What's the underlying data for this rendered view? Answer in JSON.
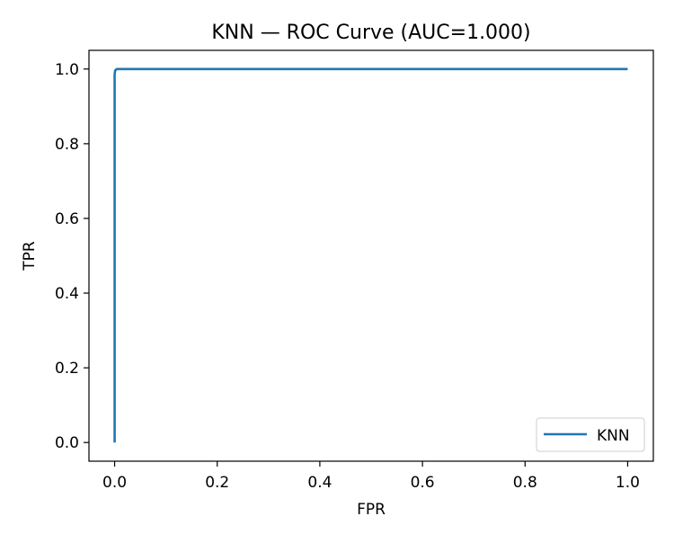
{
  "chart_data": {
    "type": "line",
    "title": "KNN — ROC Curve (AUC=1.000)",
    "xlabel": "FPR",
    "ylabel": "TPR",
    "xlim": [
      -0.05,
      1.05
    ],
    "ylim": [
      -0.05,
      1.05
    ],
    "x_ticks": [
      0.0,
      0.2,
      0.4,
      0.6,
      0.8,
      1.0
    ],
    "y_ticks": [
      0.0,
      0.2,
      0.4,
      0.6,
      0.8,
      1.0
    ],
    "x_tick_labels": [
      "0.0",
      "0.2",
      "0.4",
      "0.6",
      "0.8",
      "1.0"
    ],
    "y_tick_labels": [
      "0.0",
      "0.2",
      "0.4",
      "0.6",
      "0.8",
      "1.0"
    ],
    "grid": false,
    "legend_position": "lower-right",
    "series": [
      {
        "name": "KNN",
        "color": "#1f77b4",
        "x": [
          0.0,
          0.0,
          0.001,
          0.004,
          1.0
        ],
        "y": [
          0.0,
          0.985,
          0.996,
          1.0,
          1.0
        ]
      }
    ]
  }
}
